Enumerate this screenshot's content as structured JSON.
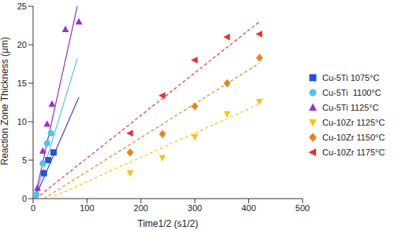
{
  "chart_data": {
    "type": "scatter",
    "x_label": "Time1/2 (s1/2)",
    "y_label": "Reaction Zone Thickness (μm)",
    "xlim": [
      0,
      500
    ],
    "xticks": [
      0,
      100,
      200,
      300,
      400,
      500
    ],
    "ylim": [
      0,
      25
    ],
    "yticks": [
      0,
      5,
      10,
      15,
      20,
      25
    ],
    "grid": false,
    "legend": "right",
    "series": [
      {
        "name": "Cu-5Ti 1075°C",
        "color": "#2b4fd6",
        "marker": "square",
        "line_style": "solid",
        "x": [
          20,
          28,
          38
        ],
        "values": [
          3.3,
          5.0,
          6.0
        ],
        "fit_x": [
          3,
          85
        ],
        "fit_values": [
          0,
          13.2
        ]
      },
      {
        "name": "Cu-5Ti  1100°C",
        "color": "#4cc3f0",
        "marker": "circle",
        "line_style": "solid",
        "x": [
          6,
          18,
          26,
          33
        ],
        "values": [
          0.5,
          4.6,
          7.2,
          8.5
        ],
        "fit_x": [
          3,
          82
        ],
        "fit_values": [
          0,
          18.2
        ]
      },
      {
        "name": "Cu-5Ti 1125°C",
        "color": "#9932cc",
        "marker": "triangle",
        "line_style": "solid",
        "x": [
          8,
          18,
          26,
          35,
          60,
          85
        ],
        "values": [
          1.4,
          6.2,
          9.7,
          12.3,
          22,
          23
        ],
        "fit_x": [
          3,
          82
        ],
        "fit_values": [
          0,
          25
        ]
      },
      {
        "name": "Cu-10Zr 1125°C",
        "color": "#f5c518",
        "marker": "triangle-down",
        "line_style": "dashed",
        "x": [
          180,
          240,
          300,
          360,
          420
        ],
        "values": [
          3.3,
          5.3,
          8.0,
          11.0,
          12.6
        ],
        "fit_x": [
          30,
          420
        ],
        "fit_values": [
          0,
          12.3
        ]
      },
      {
        "name": "Cu-10Zr 1150°C",
        "color": "#f07f1a",
        "marker": "diamond",
        "line_style": "dashed",
        "x": [
          180,
          240,
          300,
          360,
          420
        ],
        "values": [
          6.0,
          8.4,
          12.0,
          15.0,
          18.3
        ],
        "fit_x": [
          20,
          420
        ],
        "fit_values": [
          0,
          17.6
        ]
      },
      {
        "name": "Cu-10Zr 1175°C",
        "color": "#e8322e",
        "marker": "triangle-left",
        "line_style": "dashed",
        "x": [
          180,
          240,
          300,
          360,
          420
        ],
        "values": [
          8.5,
          13.4,
          18.0,
          21.0,
          21.4
        ],
        "fit_x": [
          5,
          420
        ],
        "fit_values": [
          0,
          23
        ]
      }
    ]
  }
}
